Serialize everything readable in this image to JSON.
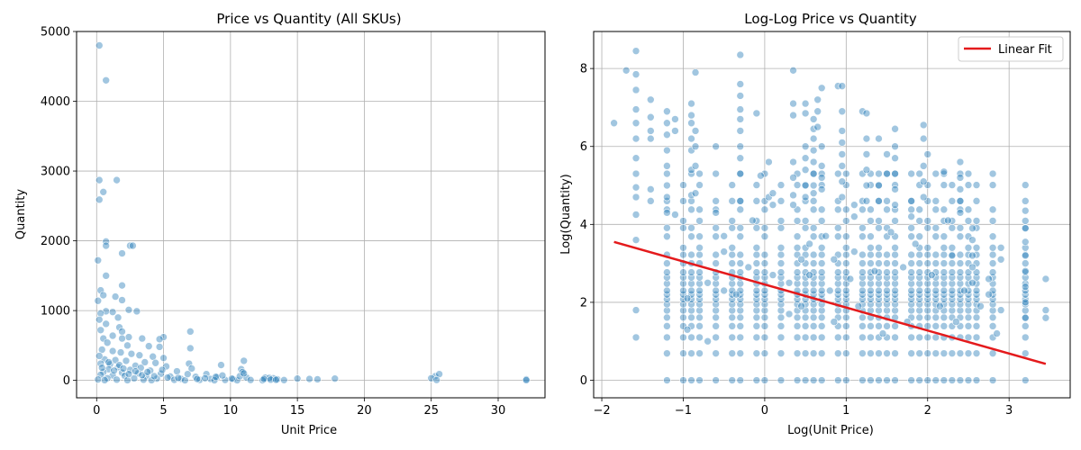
{
  "chart_data": [
    {
      "type": "scatter",
      "title": "Price vs Quantity (All SKUs)",
      "xlabel": "Unit Price",
      "ylabel": "Quantity",
      "xlim": [
        -1.5,
        33.5
      ],
      "ylim": [
        -250,
        5000
      ],
      "xticks": [
        0,
        5,
        10,
        15,
        20,
        25,
        30
      ],
      "yticks": [
        0,
        1000,
        2000,
        3000,
        4000,
        5000
      ],
      "xtick_labels": [
        "0",
        "5",
        "10",
        "15",
        "20",
        "25",
        "30"
      ],
      "ytick_labels": [
        "0",
        "1000",
        "2000",
        "3000",
        "4000",
        "5000"
      ],
      "grid": true,
      "point_color": "#1f77b4",
      "points": [
        [
          0.2,
          4800
        ],
        [
          0.7,
          4300
        ],
        [
          0.2,
          2870
        ],
        [
          1.5,
          2870
        ],
        [
          0.5,
          2700
        ],
        [
          0.2,
          2590
        ],
        [
          0.7,
          1990
        ],
        [
          0.7,
          1930
        ],
        [
          2.5,
          1930
        ],
        [
          2.7,
          1930
        ],
        [
          1.9,
          1820
        ],
        [
          0.1,
          1720
        ],
        [
          0.7,
          1500
        ],
        [
          1.9,
          1360
        ],
        [
          0.3,
          1290
        ],
        [
          0.5,
          1220
        ],
        [
          1.4,
          1200
        ],
        [
          1.9,
          1150
        ],
        [
          0.1,
          1140
        ],
        [
          2.4,
          1010
        ],
        [
          0.7,
          990
        ],
        [
          1.2,
          980
        ],
        [
          3.0,
          990
        ],
        [
          0.3,
          960
        ],
        [
          1.6,
          900
        ],
        [
          0.2,
          870
        ],
        [
          0.7,
          810
        ],
        [
          1.7,
          760
        ],
        [
          1.9,
          700
        ],
        [
          0.3,
          720
        ],
        [
          7.0,
          700
        ],
        [
          1.2,
          640
        ],
        [
          2.4,
          620
        ],
        [
          5.0,
          620
        ],
        [
          0.5,
          600
        ],
        [
          1.9,
          600
        ],
        [
          3.4,
          600
        ],
        [
          4.7,
          590
        ],
        [
          0.8,
          540
        ],
        [
          2.3,
          500
        ],
        [
          3.9,
          490
        ],
        [
          4.7,
          480
        ],
        [
          7.0,
          460
        ],
        [
          0.4,
          440
        ],
        [
          1.2,
          420
        ],
        [
          1.8,
          400
        ],
        [
          2.6,
          380
        ],
        [
          3.2,
          360
        ],
        [
          4.2,
          340
        ],
        [
          5.0,
          320
        ],
        [
          0.6,
          300
        ],
        [
          1.4,
          290
        ],
        [
          2.2,
          280
        ],
        [
          11.0,
          280
        ],
        [
          3.6,
          260
        ],
        [
          4.4,
          250
        ],
        [
          0.3,
          240
        ],
        [
          6.9,
          240
        ],
        [
          1.0,
          230
        ],
        [
          9.3,
          220
        ],
        [
          2.9,
          210
        ],
        [
          5.2,
          200
        ],
        [
          1.6,
          190
        ],
        [
          3.3,
          180
        ],
        [
          7.1,
          170
        ],
        [
          0.9,
          160
        ],
        [
          10.8,
          160
        ],
        [
          2.5,
          150
        ],
        [
          4.0,
          140
        ],
        [
          6.0,
          130
        ],
        [
          0.5,
          120
        ],
        [
          1.9,
          110
        ],
        [
          3.1,
          100
        ],
        [
          4.8,
          95
        ],
        [
          8.2,
          90
        ],
        [
          10.9,
          120
        ],
        [
          12.6,
          40
        ],
        [
          13.2,
          30
        ],
        [
          25.3,
          60
        ],
        [
          25.6,
          90
        ],
        [
          15.0,
          25
        ],
        [
          15.9,
          20
        ],
        [
          16.5,
          15
        ],
        [
          17.8,
          25
        ],
        [
          25.0,
          30
        ],
        [
          32.1,
          15
        ],
        [
          0.3,
          80
        ],
        [
          1.2,
          70
        ],
        [
          2.1,
          65
        ],
        [
          3.7,
          60
        ],
        [
          5.5,
          55
        ],
        [
          7.4,
          50
        ],
        [
          9.0,
          45
        ],
        [
          11.2,
          40
        ],
        [
          12.9,
          35
        ],
        [
          0.8,
          30
        ],
        [
          2.8,
          28
        ],
        [
          4.5,
          25
        ],
        [
          6.3,
          22
        ],
        [
          8.5,
          20
        ],
        [
          10.2,
          18
        ],
        [
          13.5,
          15
        ],
        [
          0.1,
          12
        ],
        [
          1.5,
          10
        ],
        [
          3.5,
          9
        ],
        [
          5.8,
          8
        ],
        [
          7.7,
          7
        ],
        [
          9.6,
          6
        ],
        [
          11.5,
          5
        ],
        [
          14.0,
          4
        ],
        [
          0.6,
          3
        ],
        [
          2.3,
          2
        ],
        [
          4.1,
          2
        ],
        [
          6.6,
          1
        ],
        [
          8.8,
          1
        ],
        [
          10.5,
          1
        ],
        [
          12.4,
          1
        ],
        [
          25.4,
          5
        ],
        [
          32.1,
          3
        ],
        [
          0.2,
          350
        ],
        [
          0.4,
          180
        ],
        [
          0.9,
          260
        ],
        [
          1.3,
          140
        ],
        [
          1.7,
          220
        ],
        [
          2.0,
          170
        ],
        [
          2.4,
          90
        ],
        [
          2.9,
          130
        ],
        [
          3.4,
          75
        ],
        [
          3.8,
          120
        ],
        [
          4.3,
          60
        ],
        [
          4.9,
          150
        ],
        [
          5.3,
          40
        ],
        [
          6.1,
          35
        ],
        [
          6.8,
          90
        ],
        [
          7.5,
          20
        ],
        [
          8.1,
          30
        ],
        [
          8.9,
          50
        ],
        [
          9.4,
          70
        ],
        [
          10.1,
          25
        ],
        [
          10.7,
          60
        ],
        [
          11.0,
          100
        ],
        [
          12.5,
          20
        ],
        [
          13.0,
          10
        ],
        [
          13.4,
          8
        ]
      ]
    },
    {
      "type": "scatter",
      "title": "Log-Log Price vs Quantity",
      "xlabel": "Log(Unit Price)",
      "ylabel": "Log(Quantity)",
      "xlim": [
        -2.1,
        3.75
      ],
      "ylim": [
        -0.45,
        8.95
      ],
      "xticks": [
        -2,
        -1,
        0,
        1,
        2,
        3
      ],
      "yticks": [
        0,
        2,
        4,
        6,
        8
      ],
      "xtick_labels": [
        "−2",
        "−1",
        "0",
        "1",
        "2",
        "3"
      ],
      "ytick_labels": [
        "0",
        "2",
        "4",
        "6",
        "8"
      ],
      "grid": true,
      "point_color": "#1f77b4",
      "legend": {
        "placement": "top-right",
        "entries": [
          "Linear Fit"
        ]
      },
      "fit_line": {
        "name": "Linear Fit",
        "color": "#e41a1c",
        "x": [
          -1.85,
          3.45
        ],
        "y": [
          3.55,
          0.42
        ]
      },
      "columns_x": [
        -1.2,
        -1.0,
        -0.9,
        -0.8,
        -0.6,
        -0.4,
        -0.3,
        -0.1,
        0.0,
        0.2,
        0.4,
        0.5,
        0.6,
        0.7,
        0.9,
        1.0,
        1.2,
        1.3,
        1.4,
        1.5,
        1.6,
        1.8,
        1.9,
        2.0,
        2.1,
        2.2,
        2.3,
        2.4,
        2.5,
        2.6,
        2.8,
        3.2
      ],
      "column_levels": [
        0,
        0.69,
        1.1,
        1.39,
        1.61,
        1.79,
        1.95,
        2.08,
        2.2,
        2.3,
        2.48,
        2.64,
        2.77,
        3.0,
        3.22,
        3.4,
        3.69,
        3.91,
        4.09,
        4.38,
        4.6,
        5.01,
        5.3
      ],
      "points": [
        [
          -1.85,
          6.6
        ],
        [
          -1.7,
          7.95
        ],
        [
          -1.58,
          8.45
        ],
        [
          -1.58,
          7.85
        ],
        [
          -1.58,
          7.45
        ],
        [
          -1.58,
          6.95
        ],
        [
          -1.58,
          6.6
        ],
        [
          -1.58,
          6.2
        ],
        [
          -1.58,
          5.7
        ],
        [
          -1.58,
          5.3
        ],
        [
          -1.58,
          4.95
        ],
        [
          -1.58,
          4.7
        ],
        [
          -1.58,
          4.25
        ],
        [
          -1.58,
          3.6
        ],
        [
          -1.58,
          1.8
        ],
        [
          -1.58,
          1.1
        ],
        [
          -1.4,
          7.2
        ],
        [
          -1.4,
          6.75
        ],
        [
          -1.4,
          6.4
        ],
        [
          -1.4,
          6.2
        ],
        [
          -1.4,
          4.9
        ],
        [
          -1.4,
          4.6
        ],
        [
          -1.2,
          6.9
        ],
        [
          -1.2,
          6.6
        ],
        [
          -1.2,
          6.3
        ],
        [
          -1.2,
          5.9
        ],
        [
          -1.2,
          5.5
        ],
        [
          -1.2,
          5.0
        ],
        [
          -1.2,
          4.7
        ],
        [
          -1.2,
          4.3
        ],
        [
          -1.1,
          6.7
        ],
        [
          -1.1,
          6.4
        ],
        [
          -1.1,
          4.25
        ],
        [
          -0.9,
          7.1
        ],
        [
          -0.9,
          6.8
        ],
        [
          -0.9,
          6.6
        ],
        [
          -0.9,
          6.2
        ],
        [
          -0.9,
          5.9
        ],
        [
          -0.9,
          5.4
        ],
        [
          -0.9,
          4.75
        ],
        [
          -0.85,
          7.9
        ],
        [
          -0.85,
          6.4
        ],
        [
          -0.85,
          6.0
        ],
        [
          -0.85,
          5.5
        ],
        [
          -0.85,
          4.8
        ],
        [
          -0.6,
          6.0
        ],
        [
          -0.6,
          4.3
        ],
        [
          -0.3,
          8.35
        ],
        [
          -0.3,
          7.6
        ],
        [
          -0.3,
          7.3
        ],
        [
          -0.3,
          6.95
        ],
        [
          -0.3,
          6.7
        ],
        [
          -0.3,
          6.4
        ],
        [
          -0.3,
          6.0
        ],
        [
          -0.3,
          5.7
        ],
        [
          -0.3,
          5.3
        ],
        [
          -0.3,
          4.6
        ],
        [
          -0.1,
          6.85
        ],
        [
          -0.05,
          5.25
        ],
        [
          0.05,
          5.6
        ],
        [
          0.05,
          4.7
        ],
        [
          0.1,
          4.8
        ],
        [
          0.35,
          7.95
        ],
        [
          0.35,
          7.1
        ],
        [
          0.35,
          6.8
        ],
        [
          0.35,
          5.6
        ],
        [
          0.35,
          5.2
        ],
        [
          0.35,
          4.75
        ],
        [
          0.35,
          4.5
        ],
        [
          0.5,
          7.1
        ],
        [
          0.5,
          6.85
        ],
        [
          0.5,
          6.0
        ],
        [
          0.5,
          5.7
        ],
        [
          0.5,
          5.4
        ],
        [
          0.5,
          5.0
        ],
        [
          0.5,
          4.7
        ],
        [
          0.6,
          6.7
        ],
        [
          0.6,
          6.45
        ],
        [
          0.6,
          6.2
        ],
        [
          0.6,
          5.9
        ],
        [
          0.6,
          5.6
        ],
        [
          0.6,
          5.3
        ],
        [
          0.6,
          5.0
        ],
        [
          0.6,
          4.8
        ],
        [
          0.65,
          7.2
        ],
        [
          0.65,
          6.9
        ],
        [
          0.65,
          6.5
        ],
        [
          0.7,
          7.5
        ],
        [
          0.7,
          6.0
        ],
        [
          0.7,
          5.5
        ],
        [
          0.7,
          5.2
        ],
        [
          0.7,
          4.9
        ],
        [
          0.9,
          7.55
        ],
        [
          0.95,
          7.55
        ],
        [
          0.95,
          6.9
        ],
        [
          0.95,
          6.4
        ],
        [
          0.95,
          6.1
        ],
        [
          0.95,
          5.8
        ],
        [
          0.95,
          5.5
        ],
        [
          0.95,
          5.1
        ],
        [
          0.95,
          4.7
        ],
        [
          1.1,
          4.5
        ],
        [
          1.1,
          4.2
        ],
        [
          1.2,
          6.9
        ],
        [
          1.25,
          6.85
        ],
        [
          1.25,
          6.2
        ],
        [
          1.25,
          5.8
        ],
        [
          1.25,
          5.4
        ],
        [
          1.25,
          5.0
        ],
        [
          1.25,
          4.6
        ],
        [
          1.4,
          6.2
        ],
        [
          1.4,
          5.3
        ],
        [
          1.4,
          5.0
        ],
        [
          1.4,
          4.6
        ],
        [
          1.5,
          5.8
        ],
        [
          1.5,
          5.3
        ],
        [
          1.6,
          6.45
        ],
        [
          1.6,
          6.0
        ],
        [
          1.6,
          5.7
        ],
        [
          1.6,
          5.3
        ],
        [
          1.6,
          4.9
        ],
        [
          1.6,
          4.5
        ],
        [
          1.8,
          4.6
        ],
        [
          1.8,
          4.2
        ],
        [
          1.95,
          6.55
        ],
        [
          1.95,
          6.2
        ],
        [
          1.95,
          5.5
        ],
        [
          1.95,
          5.1
        ],
        [
          1.95,
          4.7
        ],
        [
          2.0,
          5.8
        ],
        [
          2.2,
          5.35
        ],
        [
          2.25,
          4.1
        ],
        [
          2.4,
          5.6
        ],
        [
          2.4,
          5.2
        ],
        [
          2.4,
          4.9
        ],
        [
          2.4,
          4.6
        ],
        [
          2.4,
          4.3
        ],
        [
          2.55,
          3.9
        ],
        [
          2.55,
          3.6
        ],
        [
          2.55,
          3.2
        ],
        [
          2.55,
          2.9
        ],
        [
          2.55,
          2.5
        ],
        [
          2.75,
          2.6
        ],
        [
          2.75,
          2.2
        ],
        [
          2.9,
          3.4
        ],
        [
          2.9,
          3.1
        ],
        [
          2.9,
          1.8
        ],
        [
          3.2,
          4.35
        ],
        [
          3.2,
          3.9
        ],
        [
          3.2,
          3.55
        ],
        [
          3.2,
          3.2
        ],
        [
          3.2,
          2.8
        ],
        [
          3.2,
          2.4
        ],
        [
          3.2,
          2.0
        ],
        [
          3.2,
          1.6
        ],
        [
          3.45,
          2.6
        ],
        [
          3.45,
          1.8
        ],
        [
          3.45,
          1.6
        ],
        [
          -0.95,
          2.1
        ],
        [
          -0.95,
          1.3
        ],
        [
          -0.7,
          1.0
        ],
        [
          -0.7,
          2.5
        ],
        [
          -0.5,
          3.7
        ],
        [
          -0.5,
          3.3
        ],
        [
          -0.5,
          2.3
        ],
        [
          -0.35,
          2.2
        ],
        [
          -0.2,
          2.9
        ],
        [
          -0.15,
          4.1
        ],
        [
          0.1,
          4.5
        ],
        [
          0.1,
          2.7
        ],
        [
          0.3,
          1.7
        ],
        [
          0.3,
          2.5
        ],
        [
          0.45,
          3.1
        ],
        [
          0.45,
          1.9
        ],
        [
          0.55,
          3.5
        ],
        [
          0.55,
          2.7
        ],
        [
          0.75,
          3.7
        ],
        [
          0.8,
          2.3
        ],
        [
          0.85,
          3.1
        ],
        [
          0.85,
          1.5
        ],
        [
          1.05,
          2.6
        ],
        [
          1.1,
          3.3
        ],
        [
          1.15,
          1.9
        ],
        [
          1.35,
          2.8
        ],
        [
          1.45,
          1.2
        ],
        [
          1.55,
          3.8
        ],
        [
          1.7,
          2.9
        ],
        [
          1.75,
          1.5
        ],
        [
          1.85,
          3.5
        ],
        [
          2.05,
          2.7
        ],
        [
          2.15,
          1.9
        ],
        [
          2.3,
          3.2
        ],
        [
          2.35,
          1.5
        ],
        [
          2.45,
          2.3
        ],
        [
          2.65,
          1.9
        ],
        [
          2.85,
          1.2
        ]
      ]
    }
  ]
}
